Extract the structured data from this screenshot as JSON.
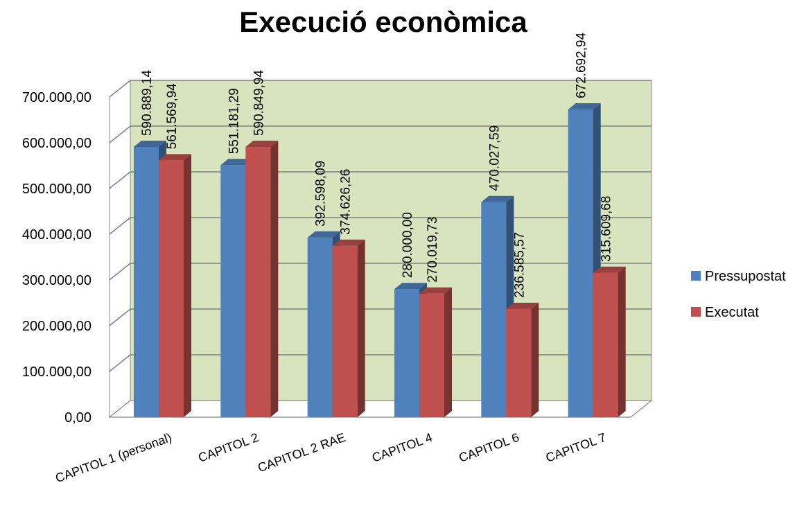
{
  "chart_data": {
    "type": "bar",
    "title": "Execució econòmica",
    "xlabel": "",
    "ylabel": "",
    "categories": [
      "CAPITOL 1 (personal)",
      "CAPITOL 2",
      "CAPITOL 2 RAE",
      "CAPITOL 4",
      "CAPITOL 6",
      "CAPITOL 7"
    ],
    "series": [
      {
        "name": "Pressupostat",
        "color": "#4F81BD",
        "values": [
          590889.14,
          551181.29,
          392598.09,
          280000.0,
          470027.59,
          672692.94
        ],
        "labels": [
          "590.889,14",
          "551.181,29",
          "392.598,09",
          "280.000,00",
          "470.027,59",
          "672.692,94"
        ]
      },
      {
        "name": "Executat",
        "color": "#C0504D",
        "values": [
          561569.94,
          590849.94,
          374626.26,
          270019.73,
          236585.57,
          315609.68
        ],
        "labels": [
          "561.569,94",
          "590.849,94",
          "374.626,26",
          "270.019,73",
          "236.585,57",
          "315.609,68"
        ]
      }
    ],
    "ylim": [
      0,
      700000
    ],
    "yticks": [
      0,
      100000,
      200000,
      300000,
      400000,
      500000,
      600000,
      700000
    ],
    "ytick_labels": [
      "0,00",
      "100.000,00",
      "200.000,00",
      "300.000,00",
      "400.000,00",
      "500.000,00",
      "600.000,00",
      "700.000,00"
    ],
    "grid": true,
    "wall_color": "#D7E4BD",
    "legend_position": "right"
  }
}
